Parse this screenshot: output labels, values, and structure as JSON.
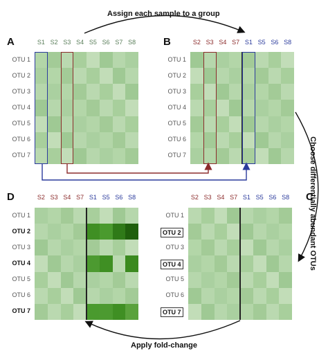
{
  "steps": {
    "top": "Assign each sample to a group",
    "right": "Choose differentially abundant OTUs",
    "bottom": "Apply fold-change"
  },
  "colors": {
    "blue_group": "#2a3a9c",
    "red_group": "#8b2b2b",
    "neutral_label": "#5b7f5b",
    "base_cell": "#a9cf9d",
    "strong_cell": "#3f8f23"
  },
  "panels": {
    "A": {
      "letter": "A",
      "columns": [
        {
          "label": "S1",
          "group": "neutral"
        },
        {
          "label": "S2",
          "group": "neutral"
        },
        {
          "label": "S3",
          "group": "neutral"
        },
        {
          "label": "S4",
          "group": "neutral"
        },
        {
          "label": "S5",
          "group": "neutral"
        },
        {
          "label": "S6",
          "group": "neutral"
        },
        {
          "label": "S7",
          "group": "neutral"
        },
        {
          "label": "S8",
          "group": "neutral"
        }
      ],
      "rows": [
        "OTU 1",
        "OTU 2",
        "OTU 3",
        "OTU 4",
        "OTU 5",
        "OTU 6",
        "OTU 7"
      ]
    },
    "B": {
      "letter": "B",
      "columns": [
        {
          "label": "S2",
          "group": "red"
        },
        {
          "label": "S3",
          "group": "red"
        },
        {
          "label": "S4",
          "group": "red"
        },
        {
          "label": "S7",
          "group": "red"
        },
        {
          "label": "S1",
          "group": "blue"
        },
        {
          "label": "S5",
          "group": "blue"
        },
        {
          "label": "S6",
          "group": "blue"
        },
        {
          "label": "S8",
          "group": "blue"
        }
      ],
      "rows": [
        "OTU 1",
        "OTU 2",
        "OTU 3",
        "OTU 4",
        "OTU 5",
        "OTU 6",
        "OTU 7"
      ]
    },
    "C": {
      "letter": "C",
      "columns": [
        {
          "label": "S2",
          "group": "red"
        },
        {
          "label": "S3",
          "group": "red"
        },
        {
          "label": "S4",
          "group": "red"
        },
        {
          "label": "S7",
          "group": "red"
        },
        {
          "label": "S1",
          "group": "blue"
        },
        {
          "label": "S5",
          "group": "blue"
        },
        {
          "label": "S6",
          "group": "blue"
        },
        {
          "label": "S8",
          "group": "blue"
        }
      ],
      "rows": [
        "OTU 1",
        "OTU 2",
        "OTU 3",
        "OTU 4",
        "OTU 5",
        "OTU 6",
        "OTU 7"
      ],
      "selected_rows": [
        "OTU 2",
        "OTU 4",
        "OTU 7"
      ]
    },
    "D": {
      "letter": "D",
      "columns": [
        {
          "label": "S2",
          "group": "red"
        },
        {
          "label": "S3",
          "group": "red"
        },
        {
          "label": "S4",
          "group": "red"
        },
        {
          "label": "S7",
          "group": "red"
        },
        {
          "label": "S1",
          "group": "blue"
        },
        {
          "label": "S5",
          "group": "blue"
        },
        {
          "label": "S6",
          "group": "blue"
        },
        {
          "label": "S8",
          "group": "blue"
        }
      ],
      "rows": [
        "OTU 1",
        "OTU 2",
        "OTU 3",
        "OTU 4",
        "OTU 5",
        "OTU 6",
        "OTU 7"
      ],
      "selected_rows": [
        "OTU 2",
        "OTU 4",
        "OTU 7"
      ]
    }
  }
}
